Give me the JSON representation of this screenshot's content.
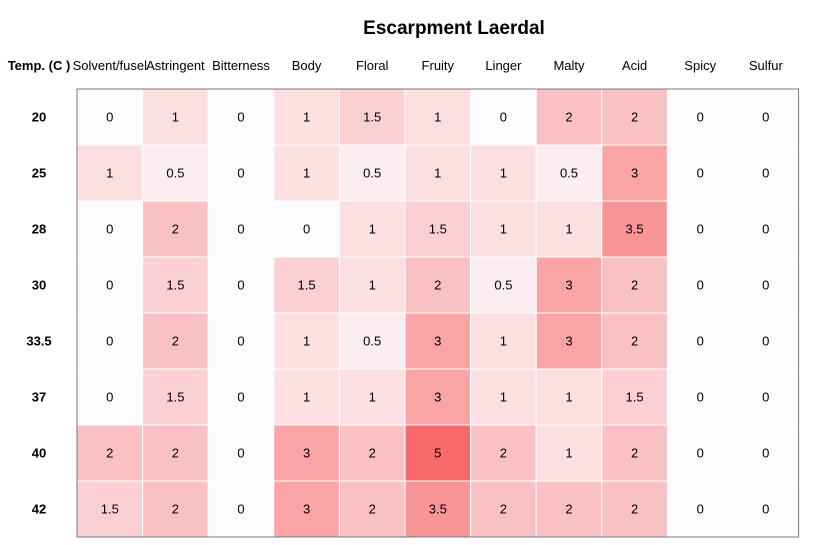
{
  "chart_data": {
    "type": "heatmap",
    "title": "Escarpment Laerdal",
    "row_header": "Temp. (C )",
    "columns": [
      "Solvent/fusel",
      "Astringent",
      "Bitterness",
      "Body",
      "Floral",
      "Fruity",
      "Linger",
      "Malty",
      "Acid",
      "Spicy",
      "Sulfur"
    ],
    "rows": [
      "20",
      "25",
      "28",
      "30",
      "33.5",
      "37",
      "40",
      "42"
    ],
    "values": [
      [
        0,
        1,
        0,
        1,
        1.5,
        1,
        0,
        2,
        2,
        0,
        0
      ],
      [
        1,
        0.5,
        0,
        1,
        0.5,
        1,
        1,
        0.5,
        3,
        0,
        0
      ],
      [
        0,
        2,
        0,
        0,
        1,
        1.5,
        1,
        1,
        3.5,
        0,
        0
      ],
      [
        0,
        1.5,
        0,
        1.5,
        1,
        2,
        0.5,
        3,
        2,
        0,
        0
      ],
      [
        0,
        2,
        0,
        1,
        0.5,
        3,
        1,
        3,
        2,
        0,
        0
      ],
      [
        0,
        1.5,
        0,
        1,
        1,
        3,
        1,
        1,
        1.5,
        0,
        0
      ],
      [
        2,
        2,
        0,
        3,
        2,
        5,
        2,
        1,
        2,
        0,
        0
      ],
      [
        1.5,
        2,
        0,
        3,
        2,
        3.5,
        2,
        2,
        2,
        0,
        0
      ]
    ],
    "value_range": [
      0,
      5
    ],
    "color_low": "#fcfcff",
    "color_high": "#f8696b",
    "grid_color": "#ffffff",
    "border_color": "#7a7a7a"
  }
}
